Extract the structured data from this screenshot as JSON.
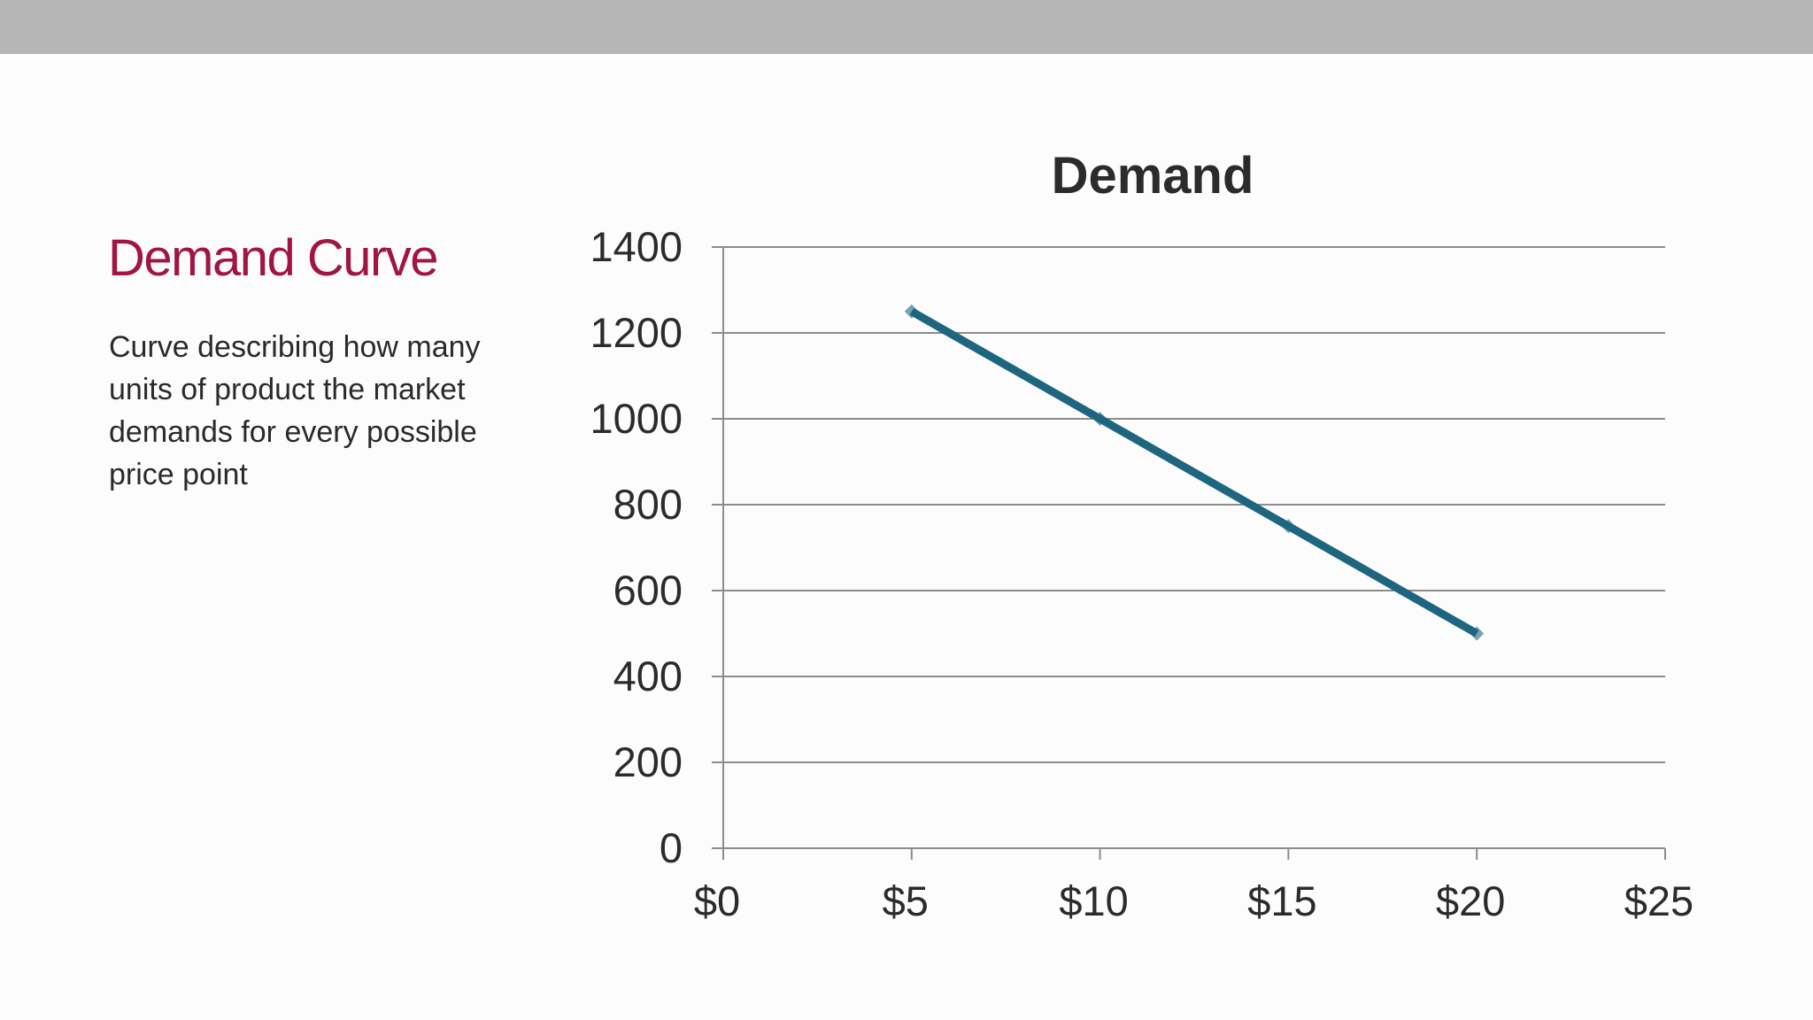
{
  "slide": {
    "heading": "Demand Curve",
    "description": "Curve describing how many units of product the market demands for every possible price point"
  },
  "colors": {
    "top_bar": "#b6b6b6",
    "heading": "#a11443",
    "series_line": "#1e6680",
    "gridline": "#8c8c8c"
  },
  "chart_data": {
    "type": "scatter",
    "title": "Demand",
    "xlabel": "",
    "ylabel": "",
    "xlim": [
      0,
      25
    ],
    "ylim": [
      0,
      1400
    ],
    "x_ticks": [
      0,
      5,
      10,
      15,
      20,
      25
    ],
    "x_tick_labels": [
      "$0",
      "$5",
      "$10",
      "$15",
      "$20",
      "$25"
    ],
    "y_ticks": [
      0,
      200,
      400,
      600,
      800,
      1000,
      1200,
      1400
    ],
    "y_tick_labels": [
      "0",
      "200",
      "400",
      "600",
      "800",
      "1000",
      "1200",
      "1400"
    ],
    "grid": true,
    "legend": "none",
    "series": [
      {
        "x": [
          5,
          10,
          15,
          20
        ],
        "y": [
          1250,
          1000,
          750,
          500
        ],
        "style": "straight lines with markers"
      }
    ]
  }
}
